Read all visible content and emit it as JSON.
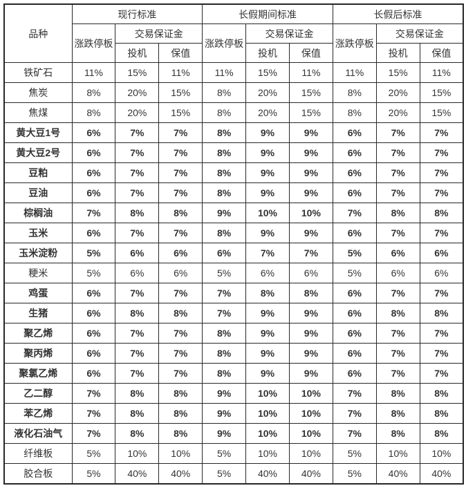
{
  "table": {
    "corner_label": "品种",
    "groups": [
      {
        "label": "现行标准"
      },
      {
        "label": "长假期间标准"
      },
      {
        "label": "长假后标准"
      }
    ],
    "sub_headers": {
      "limit": "涨跌停板",
      "margin": "交易保证金",
      "spec": "投机",
      "hedge": "保值"
    },
    "rows": [
      {
        "name": "铁矿石",
        "bold": false,
        "values": [
          "11%",
          "15%",
          "11%",
          "11%",
          "15%",
          "11%",
          "11%",
          "15%",
          "11%"
        ]
      },
      {
        "name": "焦炭",
        "bold": false,
        "values": [
          "8%",
          "20%",
          "15%",
          "8%",
          "20%",
          "15%",
          "8%",
          "20%",
          "15%"
        ]
      },
      {
        "name": "焦煤",
        "bold": false,
        "values": [
          "8%",
          "20%",
          "15%",
          "8%",
          "20%",
          "15%",
          "8%",
          "20%",
          "15%"
        ]
      },
      {
        "name": "黄大豆1号",
        "bold": true,
        "values": [
          "6%",
          "7%",
          "7%",
          "8%",
          "9%",
          "9%",
          "6%",
          "7%",
          "7%"
        ]
      },
      {
        "name": "黄大豆2号",
        "bold": true,
        "values": [
          "6%",
          "7%",
          "7%",
          "8%",
          "9%",
          "9%",
          "6%",
          "7%",
          "7%"
        ]
      },
      {
        "name": "豆粕",
        "bold": true,
        "values": [
          "6%",
          "7%",
          "7%",
          "8%",
          "9%",
          "9%",
          "6%",
          "7%",
          "7%"
        ]
      },
      {
        "name": "豆油",
        "bold": true,
        "values": [
          "6%",
          "7%",
          "7%",
          "8%",
          "9%",
          "9%",
          "6%",
          "7%",
          "7%"
        ]
      },
      {
        "name": "棕榈油",
        "bold": true,
        "values": [
          "7%",
          "8%",
          "8%",
          "9%",
          "10%",
          "10%",
          "7%",
          "8%",
          "8%"
        ]
      },
      {
        "name": "玉米",
        "bold": true,
        "values": [
          "6%",
          "7%",
          "7%",
          "8%",
          "9%",
          "9%",
          "6%",
          "7%",
          "7%"
        ]
      },
      {
        "name": "玉米淀粉",
        "bold": true,
        "values": [
          "5%",
          "6%",
          "6%",
          "6%",
          "7%",
          "7%",
          "5%",
          "6%",
          "6%"
        ]
      },
      {
        "name": "粳米",
        "bold": false,
        "values": [
          "5%",
          "6%",
          "6%",
          "5%",
          "6%",
          "6%",
          "5%",
          "6%",
          "6%"
        ]
      },
      {
        "name": "鸡蛋",
        "bold": true,
        "values": [
          "6%",
          "7%",
          "7%",
          "7%",
          "8%",
          "8%",
          "6%",
          "7%",
          "7%"
        ]
      },
      {
        "name": "生猪",
        "bold": true,
        "values": [
          "6%",
          "8%",
          "8%",
          "7%",
          "9%",
          "9%",
          "6%",
          "8%",
          "8%"
        ]
      },
      {
        "name": "聚乙烯",
        "bold": true,
        "values": [
          "6%",
          "7%",
          "7%",
          "8%",
          "9%",
          "9%",
          "6%",
          "7%",
          "7%"
        ]
      },
      {
        "name": "聚丙烯",
        "bold": true,
        "values": [
          "6%",
          "7%",
          "7%",
          "8%",
          "9%",
          "9%",
          "6%",
          "7%",
          "7%"
        ]
      },
      {
        "name": "聚氯乙烯",
        "bold": true,
        "values": [
          "6%",
          "7%",
          "7%",
          "8%",
          "9%",
          "9%",
          "6%",
          "7%",
          "7%"
        ]
      },
      {
        "name": "乙二醇",
        "bold": true,
        "values": [
          "7%",
          "8%",
          "8%",
          "9%",
          "10%",
          "10%",
          "7%",
          "8%",
          "8%"
        ]
      },
      {
        "name": "苯乙烯",
        "bold": true,
        "values": [
          "7%",
          "8%",
          "8%",
          "9%",
          "10%",
          "10%",
          "7%",
          "8%",
          "8%"
        ]
      },
      {
        "name": "液化石油气",
        "bold": true,
        "values": [
          "7%",
          "8%",
          "8%",
          "9%",
          "10%",
          "10%",
          "7%",
          "8%",
          "8%"
        ]
      },
      {
        "name": "纤维板",
        "bold": false,
        "values": [
          "5%",
          "10%",
          "10%",
          "5%",
          "10%",
          "10%",
          "5%",
          "10%",
          "10%"
        ]
      },
      {
        "name": "胶合板",
        "bold": false,
        "values": [
          "5%",
          "40%",
          "40%",
          "5%",
          "40%",
          "40%",
          "5%",
          "40%",
          "40%"
        ]
      }
    ]
  }
}
